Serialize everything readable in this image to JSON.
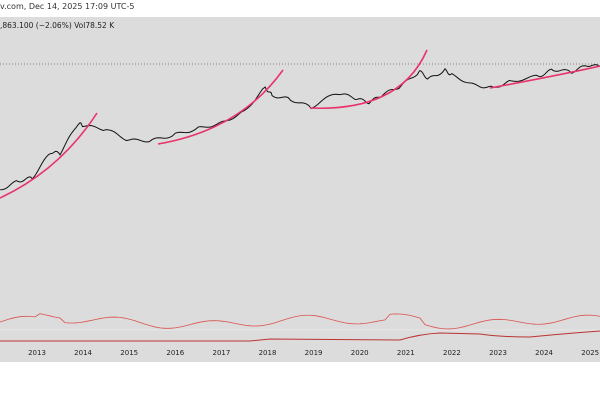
{
  "header": {
    "source_line": "v.com, Dec 14, 2025 17:09 UTC-5",
    "price_line": ",863.100 (−2.06%)  Vol78.52 K"
  },
  "chart_data": {
    "type": "line",
    "title": "",
    "yscale": "log",
    "series": [
      {
        "name": "price",
        "x": [
          2012.2,
          2012.6,
          2012.9,
          2013.3,
          2013.5,
          2013.9,
          2014.0,
          2014.5,
          2015.0,
          2015.5,
          2016.0,
          2016.5,
          2017.0,
          2017.5,
          2017.95,
          2018.1,
          2018.5,
          2018.95,
          2019.5,
          2019.9,
          2020.2,
          2020.5,
          2020.9,
          2021.3,
          2021.5,
          2021.85,
          2022.0,
          2022.5,
          2022.9,
          2023.3,
          2023.9,
          2024.2,
          2024.6,
          2024.95,
          2025.3,
          2025.8,
          2025.95
        ],
        "values": [
          5,
          10,
          13,
          100,
          90,
          1000,
          800,
          600,
          250,
          250,
          400,
          650,
          1000,
          2500,
          17000,
          9000,
          6500,
          3500,
          11000,
          7200,
          5000,
          9500,
          19000,
          60000,
          33000,
          66000,
          45000,
          20000,
          16500,
          28000,
          42000,
          70000,
          58000,
          100000,
          83000,
          120000,
          88000
        ]
      }
    ],
    "x_ticks": [
      "2013",
      "2014",
      "2015",
      "2016",
      "2017",
      "2018",
      "2019",
      "2020",
      "2021",
      "2022",
      "2023",
      "2024",
      "2025"
    ],
    "colors": {
      "price": "#111111",
      "arcs": "#e8336b",
      "indicator": "#d9534f"
    }
  }
}
